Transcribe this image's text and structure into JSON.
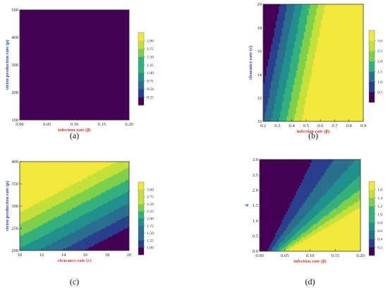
{
  "palette": [
    "#440154",
    "#2a3f8d",
    "#2a6f8e",
    "#21908d",
    "#34b07c",
    "#7ed04b",
    "#c4e03a",
    "#f2e83a"
  ],
  "chart_data": [
    {
      "type": "heatmap",
      "panel": "a",
      "caption": "(a)",
      "xlabel": "infection rate (β)",
      "ylabel": "virion production rate (p)",
      "xlim": [
        0.0,
        0.2
      ],
      "ylim": [
        100,
        500
      ],
      "xticks": [
        "0.00",
        "0.05",
        "0.10",
        "0.15",
        "0.20"
      ],
      "yticks": [
        "100",
        "200",
        "300",
        "400",
        "500"
      ],
      "legend_ticks": [
        "0.25",
        "0.50",
        "0.75",
        "1.00",
        "1.25",
        "1.50",
        "1.75",
        "2.00"
      ],
      "legend_range": [
        0.0,
        2.2
      ],
      "field": {
        "form": "product",
        "k": 2.05e-05,
        "offset": 0.0,
        "vmin": 0.0,
        "vmax": 2.2
      }
    },
    {
      "type": "heatmap",
      "panel": "b",
      "caption": "(b)",
      "xlabel": "infection rate (β)",
      "ylabel": "clearance rate (c)",
      "xlim": [
        0.2,
        0.9
      ],
      "ylim": [
        10,
        20
      ],
      "xticks": [
        "0.2",
        "0.3",
        "0.4",
        "0.5",
        "0.6",
        "0.7",
        "0.8",
        "0.9"
      ],
      "yticks": [
        "10",
        "12",
        "14",
        "16",
        "18",
        "20"
      ],
      "legend_ticks": [
        "0.5",
        "1.0",
        "1.5",
        "2.0",
        "2.5",
        "3.0"
      ],
      "legend_range": [
        0.0,
        3.3
      ],
      "field": {
        "form": "linear",
        "a": 7.8,
        "b": -0.13,
        "c": 0.54,
        "vmin": 0.0,
        "vmax": 3.3
      }
    },
    {
      "type": "heatmap",
      "panel": "c",
      "caption": "(c)",
      "xlabel": "clearance rate (c)",
      "ylabel": "virion production rate (p)",
      "xlim": [
        10,
        20
      ],
      "ylim": [
        200,
        400
      ],
      "xticks": [
        "10",
        "12",
        "14",
        "16",
        "18",
        "20"
      ],
      "yticks": [
        "200",
        "250",
        "300",
        "350",
        "400"
      ],
      "legend_ticks": [
        "1.00",
        "1.25",
        "1.50",
        "1.75",
        "2.00",
        "2.25",
        "2.50",
        "2.75",
        "3.00"
      ],
      "legend_range": [
        0.75,
        3.25
      ],
      "field": {
        "form": "linear",
        "a": -0.15,
        "b": 0.0116,
        "c": 1.12,
        "vmin": 0.75,
        "vmax": 3.25
      }
    },
    {
      "type": "heatmap",
      "panel": "d",
      "caption": "(d)",
      "xlabel": "infection rate (β)",
      "ylabel": "d",
      "xlim": [
        0.0,
        0.2
      ],
      "ylim": [
        0.0,
        3.0
      ],
      "xticks": [
        "0.00",
        "0.05",
        "0.10",
        "0.15",
        "0.20"
      ],
      "yticks": [
        "0.0",
        "0.5",
        "1.0",
        "1.5",
        "2.0",
        "2.5",
        "3.0"
      ],
      "legend_ticks": [
        "0.2",
        "0.4",
        "0.6",
        "0.8",
        "1.0",
        "1.2",
        "1.4",
        "1.6"
      ],
      "legend_range": [
        0.0,
        1.8
      ],
      "field": {
        "form": "ratio",
        "k": 18.5,
        "offset": -0.33,
        "d0": 0.5,
        "vmin": 0.0,
        "vmax": 1.8
      }
    }
  ]
}
